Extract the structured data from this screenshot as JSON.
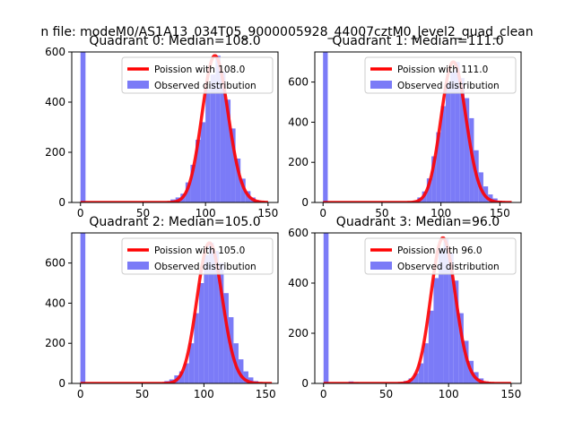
{
  "figure": {
    "suptitle": "n file: modeM0/AS1A13_034T05_9000005928_44007cztM0_level2_quad_clean"
  },
  "colors": {
    "hist": "#7b7bf7",
    "fit": "#ff0000",
    "axis": "#000000",
    "background": "#ffffff"
  },
  "chart_data": [
    {
      "type": "bar",
      "title": "Quadrant 0: Median=108.0",
      "xlim": [
        -7,
        158
      ],
      "ylim": [
        0,
        600
      ],
      "xticks": [
        0,
        50,
        100,
        150
      ],
      "yticks": [
        0,
        200,
        400,
        600
      ],
      "legend": {
        "placement": "upper-right",
        "entries": [
          "Poission with 108.0",
          "Observed distribution"
        ]
      },
      "hist": {
        "bin_width": 4,
        "bins": [
          {
            "x": 0,
            "y": 600
          },
          {
            "x": 68,
            "y": 3
          },
          {
            "x": 72,
            "y": 12
          },
          {
            "x": 76,
            "y": 20
          },
          {
            "x": 80,
            "y": 35
          },
          {
            "x": 84,
            "y": 80
          },
          {
            "x": 88,
            "y": 150
          },
          {
            "x": 92,
            "y": 250
          },
          {
            "x": 96,
            "y": 320
          },
          {
            "x": 100,
            "y": 450
          },
          {
            "x": 104,
            "y": 510
          },
          {
            "x": 108,
            "y": 585
          },
          {
            "x": 112,
            "y": 520
          },
          {
            "x": 116,
            "y": 410
          },
          {
            "x": 120,
            "y": 295
          },
          {
            "x": 124,
            "y": 175
          },
          {
            "x": 128,
            "y": 95
          },
          {
            "x": 132,
            "y": 45
          },
          {
            "x": 136,
            "y": 20
          },
          {
            "x": 140,
            "y": 8
          },
          {
            "x": 144,
            "y": 3
          }
        ]
      },
      "fit": {
        "mean": 108.0,
        "x_range": [
          0,
          150
        ]
      }
    },
    {
      "type": "bar",
      "title": "Quadrant 1: Median=111.0",
      "xlim": [
        -7,
        168
      ],
      "ylim": [
        0,
        750
      ],
      "xticks": [
        0,
        50,
        100,
        150
      ],
      "yticks": [
        0,
        200,
        400,
        600
      ],
      "legend": {
        "placement": "upper-right",
        "entries": [
          "Poission with 111.0",
          "Observed distribution"
        ]
      },
      "hist": {
        "bin_width": 4,
        "bins": [
          {
            "x": 0,
            "y": 750
          },
          {
            "x": 72,
            "y": 3
          },
          {
            "x": 76,
            "y": 8
          },
          {
            "x": 80,
            "y": 25
          },
          {
            "x": 84,
            "y": 55
          },
          {
            "x": 88,
            "y": 120
          },
          {
            "x": 92,
            "y": 230
          },
          {
            "x": 96,
            "y": 350
          },
          {
            "x": 100,
            "y": 480
          },
          {
            "x": 104,
            "y": 600
          },
          {
            "x": 108,
            "y": 650
          },
          {
            "x": 112,
            "y": 700
          },
          {
            "x": 116,
            "y": 620
          },
          {
            "x": 120,
            "y": 520
          },
          {
            "x": 124,
            "y": 420
          },
          {
            "x": 128,
            "y": 260
          },
          {
            "x": 132,
            "y": 150
          },
          {
            "x": 136,
            "y": 80
          },
          {
            "x": 140,
            "y": 40
          },
          {
            "x": 144,
            "y": 20
          },
          {
            "x": 148,
            "y": 8
          },
          {
            "x": 152,
            "y": 3
          }
        ]
      },
      "fit": {
        "mean": 111.0,
        "x_range": [
          0,
          160
        ]
      }
    },
    {
      "type": "bar",
      "title": "Quadrant 2: Median=105.0",
      "xlim": [
        -7,
        160
      ],
      "ylim": [
        0,
        750
      ],
      "xticks": [
        0,
        50,
        100,
        150
      ],
      "yticks": [
        0,
        200,
        400,
        600
      ],
      "legend": {
        "placement": "upper-right",
        "entries": [
          "Poission with 105.0",
          "Observed distribution"
        ]
      },
      "hist": {
        "bin_width": 4,
        "bins": [
          {
            "x": 0,
            "y": 750
          },
          {
            "x": 64,
            "y": 3
          },
          {
            "x": 68,
            "y": 12
          },
          {
            "x": 72,
            "y": 20
          },
          {
            "x": 76,
            "y": 40
          },
          {
            "x": 80,
            "y": 60
          },
          {
            "x": 84,
            "y": 100
          },
          {
            "x": 88,
            "y": 200
          },
          {
            "x": 92,
            "y": 350
          },
          {
            "x": 96,
            "y": 500
          },
          {
            "x": 100,
            "y": 640
          },
          {
            "x": 104,
            "y": 700
          },
          {
            "x": 108,
            "y": 660
          },
          {
            "x": 112,
            "y": 600
          },
          {
            "x": 116,
            "y": 450
          },
          {
            "x": 120,
            "y": 330
          },
          {
            "x": 124,
            "y": 200
          },
          {
            "x": 128,
            "y": 120
          },
          {
            "x": 132,
            "y": 60
          },
          {
            "x": 136,
            "y": 30
          },
          {
            "x": 140,
            "y": 12
          },
          {
            "x": 144,
            "y": 4
          }
        ]
      },
      "fit": {
        "mean": 105.0,
        "x_range": [
          0,
          155
        ]
      }
    },
    {
      "type": "bar",
      "title": "Quadrant 3: Median=96.0",
      "xlim": [
        -7,
        158
      ],
      "ylim": [
        0,
        600
      ],
      "xticks": [
        0,
        50,
        100,
        150
      ],
      "yticks": [
        0,
        200,
        400,
        600
      ],
      "legend": {
        "placement": "upper-right",
        "entries": [
          "Poission with 96.0",
          "Observed distribution"
        ]
      },
      "hist": {
        "bin_width": 4,
        "bins": [
          {
            "x": 0,
            "y": 600
          },
          {
            "x": 20,
            "y": 8
          },
          {
            "x": 24,
            "y": 5
          },
          {
            "x": 60,
            "y": 4
          },
          {
            "x": 64,
            "y": 10
          },
          {
            "x": 68,
            "y": 20
          },
          {
            "x": 72,
            "y": 40
          },
          {
            "x": 76,
            "y": 80
          },
          {
            "x": 80,
            "y": 160
          },
          {
            "x": 84,
            "y": 290
          },
          {
            "x": 88,
            "y": 420
          },
          {
            "x": 92,
            "y": 540
          },
          {
            "x": 96,
            "y": 580
          },
          {
            "x": 100,
            "y": 520
          },
          {
            "x": 104,
            "y": 410
          },
          {
            "x": 108,
            "y": 280
          },
          {
            "x": 112,
            "y": 170
          },
          {
            "x": 116,
            "y": 90
          },
          {
            "x": 120,
            "y": 45
          },
          {
            "x": 124,
            "y": 20
          },
          {
            "x": 128,
            "y": 8
          },
          {
            "x": 132,
            "y": 3
          }
        ]
      },
      "fit": {
        "mean": 96.0,
        "x_range": [
          0,
          150
        ]
      }
    }
  ]
}
